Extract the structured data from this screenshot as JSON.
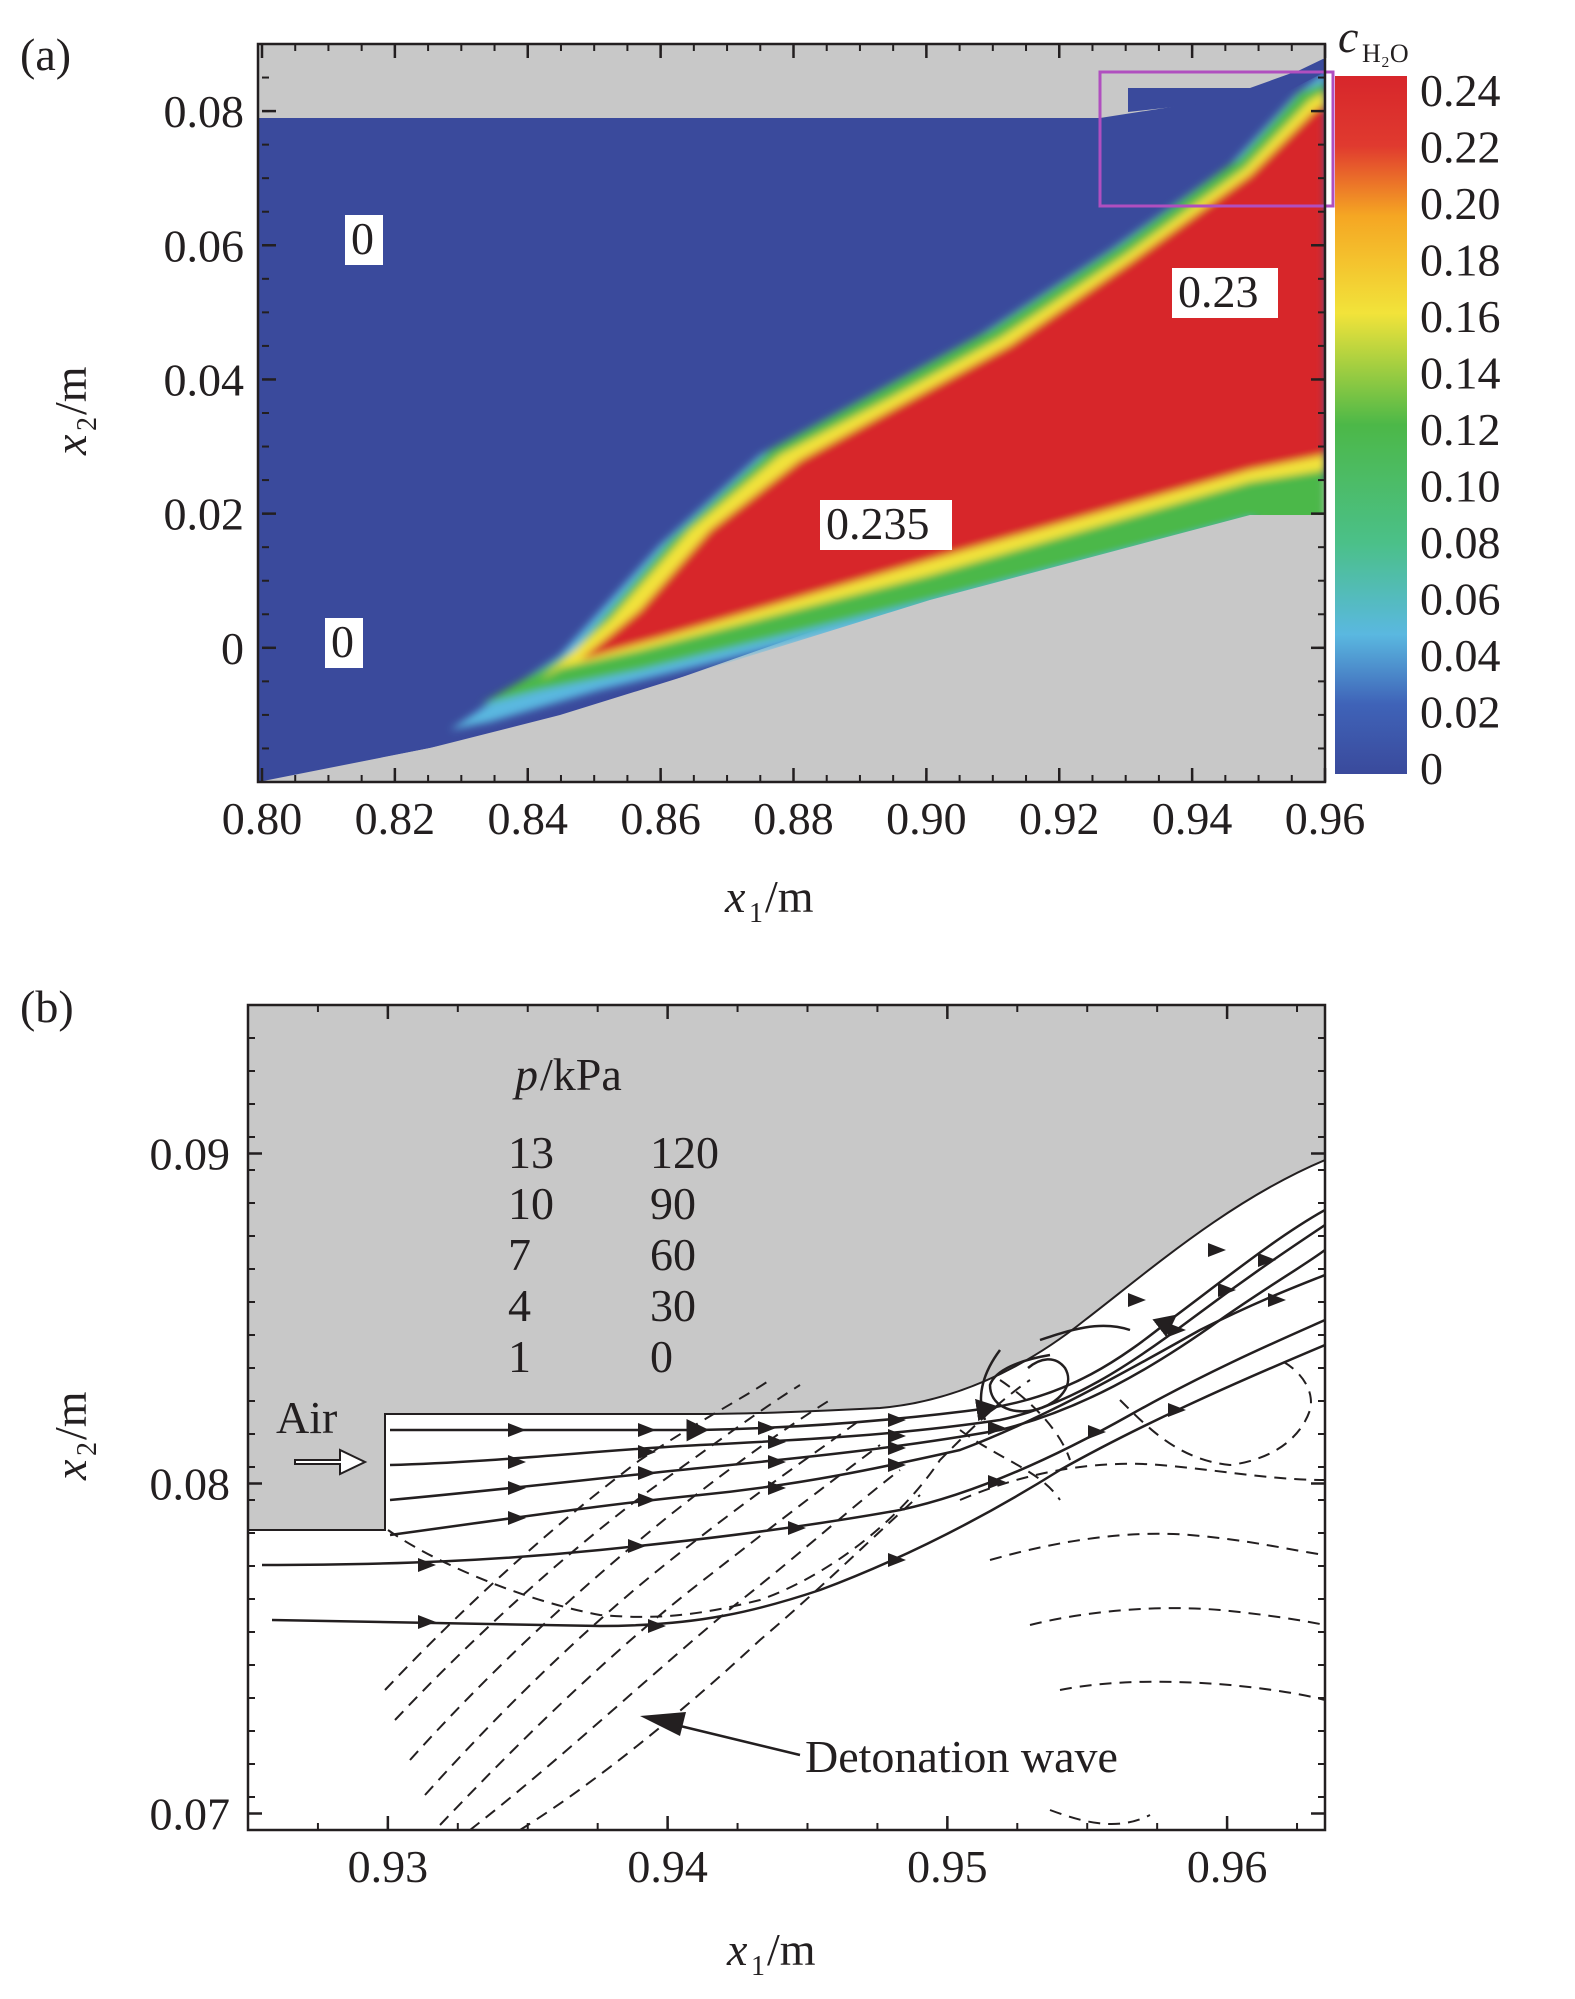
{
  "panel_a": {
    "panel_label": "(a)",
    "colorbar_title": "c",
    "colorbar_title_sub": "H₂O",
    "colorbar_ticks": [
      "0.24",
      "0.22",
      "0.20",
      "0.18",
      "0.16",
      "0.14",
      "0.12",
      "0.10",
      "0.08",
      "0.06",
      "0.04",
      "0.02",
      "0"
    ],
    "x_title": "x",
    "x_sub": "1",
    "x_unit": "/m",
    "y_title": "x",
    "y_sub": "2",
    "y_unit": "/m",
    "annotations": [
      "0",
      "0",
      "0.23",
      "0.235"
    ]
  },
  "panel_b": {
    "panel_label": "(b)",
    "x_title": "x",
    "x_sub": "1",
    "x_unit": "/m",
    "y_title": "x",
    "y_sub": "2",
    "y_unit": "/m",
    "air_label": "Air",
    "detonation_label": "Detonation wave",
    "legend_title_var": "p",
    "legend_title_unit": "/kPa",
    "legend_col1": [
      "13",
      "10",
      "7",
      "4",
      "1"
    ],
    "legend_col2": [
      "120",
      "90",
      "60",
      "30",
      "0"
    ]
  },
  "chart_data": [
    {
      "type": "heatmap",
      "title": "",
      "xlabel": "x1/m",
      "ylabel": "x2/m",
      "xlim": [
        0.8,
        0.96
      ],
      "ylim": [
        -0.02,
        0.09
      ],
      "x_ticks": [
        "0.80",
        "0.82",
        "0.84",
        "0.86",
        "0.88",
        "0.90",
        "0.92",
        "0.94",
        "0.96"
      ],
      "y_ticks": [
        "0.08",
        "0.06",
        "0.04",
        "0.02",
        "0"
      ],
      "colorbar_range": [
        0,
        0.24
      ],
      "colormap": [
        "#3a4a9c",
        "#3f63b8",
        "#5ab8e0",
        "#4cb848",
        "#f2e33a",
        "#f5a623",
        "#e03a2f",
        "#d7262b"
      ],
      "regions": [
        {
          "label": "0",
          "x": 0.816,
          "y": 0.061
        },
        {
          "label": "0",
          "x": 0.813,
          "y": 0.001
        },
        {
          "label": "0.23",
          "x": 0.949,
          "y": 0.053
        },
        {
          "label": "0.235",
          "x": 0.893,
          "y": 0.018
        }
      ],
      "highlight_box": {
        "x": [
          0.93,
          0.962
        ],
        "y": [
          0.067,
          0.087
        ],
        "color": "#b04fbf"
      }
    },
    {
      "type": "line",
      "title": "",
      "xlabel": "x1/m",
      "ylabel": "x2/m",
      "xlim": [
        0.925,
        0.9635
      ],
      "ylim": [
        0.0695,
        0.0945
      ],
      "x_ticks": [
        "0.93",
        "0.94",
        "0.95",
        "0.96"
      ],
      "y_ticks": [
        "0.09",
        "0.08",
        "0.07"
      ],
      "legend": {
        "title": "p/kPa",
        "levels": [
          13,
          10,
          7,
          4,
          1,
          120,
          90,
          60,
          30,
          0
        ]
      }
    }
  ]
}
